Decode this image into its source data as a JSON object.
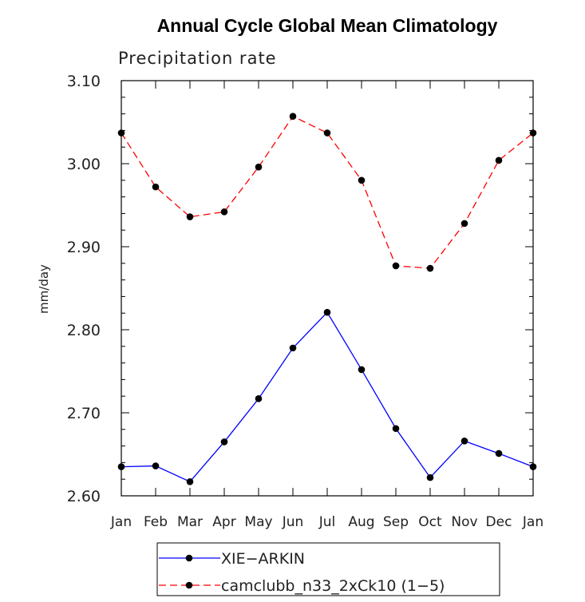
{
  "chart_data": {
    "type": "line",
    "title": "Annual Cycle Global Mean Climatology",
    "subtitle": "Precipitation rate",
    "xlabel": "",
    "ylabel": "mm/day",
    "categories": [
      "Jan",
      "Feb",
      "Mar",
      "Apr",
      "May",
      "Jun",
      "Jul",
      "Aug",
      "Sep",
      "Oct",
      "Nov",
      "Dec",
      "Jan"
    ],
    "ylim": [
      2.6,
      3.1
    ],
    "yticks": [
      "2.60",
      "2.70",
      "2.80",
      "2.90",
      "3.00",
      "3.10"
    ],
    "grid": false,
    "legend_placement": "bottom-center",
    "series": [
      {
        "name": "XIE−ARKIN",
        "color": "#0000ff",
        "style": "solid",
        "values": [
          2.635,
          2.636,
          2.617,
          2.665,
          2.717,
          2.778,
          2.821,
          2.752,
          2.681,
          2.622,
          2.666,
          2.651,
          2.635
        ]
      },
      {
        "name": "camclubb_n33_2xCk10 (1−5)",
        "color": "#ff0000",
        "style": "dashed",
        "values": [
          3.037,
          2.972,
          2.936,
          2.942,
          2.996,
          3.057,
          3.037,
          2.98,
          2.877,
          2.874,
          2.928,
          3.004,
          3.037
        ]
      }
    ]
  }
}
